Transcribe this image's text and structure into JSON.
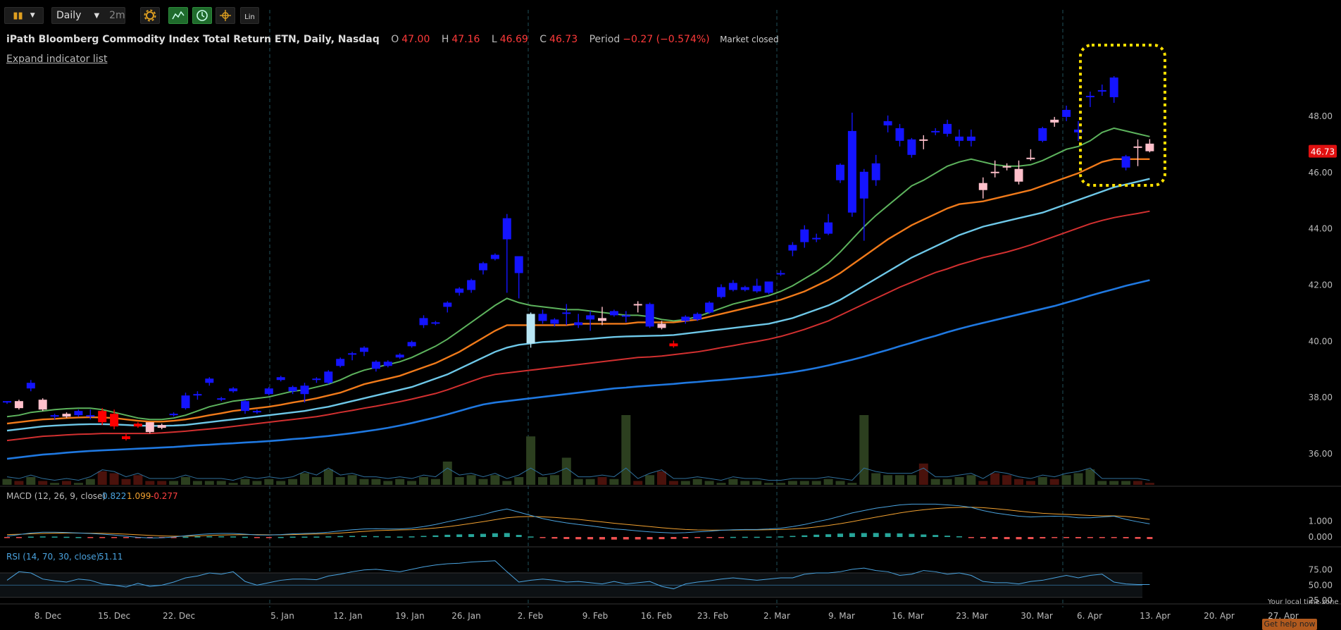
{
  "toolbar": {
    "chart_type_icon": "candlestick-icon",
    "period": "Daily",
    "period_alt": "2m",
    "settings_icon": "gear-icon",
    "scale_label": "Lin"
  },
  "header": {
    "title": "iPath Bloomberg Commodity Index Total Return ETN, Daily, Nasdaq",
    "o_label": "O",
    "o": "47.00",
    "h_label": "H",
    "h": "47.16",
    "l_label": "L",
    "l": "46.69",
    "c_label": "C",
    "c": "46.73",
    "period_label": "Period",
    "period_change": "−0.27 (−0.574%)",
    "status": "Market closed",
    "expand": "Expand indicator list"
  },
  "macd": {
    "label": "MACD (12, 26, 9, close)",
    "macd": "0.822",
    "signal": "1.099",
    "hist": "-0.277"
  },
  "rsi": {
    "label": "RSI (14, 70, 30, close)",
    "value": "51.11"
  },
  "footer": {
    "tz": "Your local time zone",
    "help": "Get help now"
  },
  "colors": {
    "up": "#1414ff",
    "down": "#ffc0cb",
    "gap": "#ff0000",
    "macd": "#4aa3df",
    "signal": "#f0a030",
    "rsi": "#4aa3df"
  },
  "chart_data": {
    "type": "candlestick",
    "price_axis": {
      "ticks": [
        36,
        38,
        40,
        42,
        44,
        46,
        48
      ],
      "ylim": [
        35,
        49.5
      ]
    },
    "last_price": "46.73",
    "x_labels": [
      "8. Dec",
      "15. Dec",
      "22. Dec",
      "5. Jan",
      "12. Jan",
      "19. Jan",
      "26. Jan",
      "2. Feb",
      "9. Feb",
      "16. Feb",
      "23. Feb",
      "2. Mar",
      "9. Mar",
      "16. Mar",
      "23. Mar",
      "30. Mar",
      "6. Apr",
      "13. Apr",
      "20. Apr",
      "27. Apr"
    ],
    "candles": [
      [
        37.8,
        37.85,
        37.75,
        37.85
      ],
      [
        37.85,
        37.9,
        37.55,
        37.6
      ],
      [
        38.3,
        38.6,
        38.2,
        38.5
      ],
      [
        37.9,
        37.95,
        37.5,
        37.55
      ],
      [
        37.3,
        37.4,
        37.2,
        37.35
      ],
      [
        37.4,
        37.45,
        37.25,
        37.3
      ],
      [
        37.35,
        37.55,
        37.3,
        37.5
      ],
      [
        37.3,
        37.55,
        37.2,
        37.35
      ],
      [
        37.5,
        37.6,
        37.0,
        37.1
      ],
      [
        37.4,
        37.55,
        36.85,
        36.95
      ],
      [
        36.6,
        36.7,
        36.45,
        36.5
      ],
      [
        37.05,
        37.1,
        36.9,
        36.95
      ],
      [
        37.1,
        37.1,
        36.7,
        36.75
      ],
      [
        37.0,
        37.05,
        36.85,
        36.9
      ],
      [
        37.35,
        37.45,
        37.3,
        37.4
      ],
      [
        37.6,
        38.15,
        37.55,
        38.05
      ],
      [
        38.05,
        38.2,
        37.9,
        38.1
      ],
      [
        38.5,
        38.7,
        38.4,
        38.65
      ],
      [
        37.95,
        38.0,
        37.85,
        37.95
      ],
      [
        38.2,
        38.35,
        38.15,
        38.3
      ],
      [
        37.5,
        37.9,
        37.4,
        37.85
      ],
      [
        37.5,
        37.55,
        37.4,
        37.5
      ],
      [
        38.1,
        38.35,
        38.05,
        38.3
      ],
      [
        38.6,
        38.75,
        38.55,
        38.7
      ],
      [
        38.2,
        38.4,
        38.1,
        38.35
      ],
      [
        38.1,
        38.5,
        37.8,
        38.4
      ],
      [
        38.6,
        38.7,
        38.5,
        38.65
      ],
      [
        38.5,
        38.95,
        38.45,
        38.9
      ],
      [
        39.1,
        39.4,
        39.05,
        39.35
      ],
      [
        39.5,
        39.6,
        39.3,
        39.55
      ],
      [
        39.6,
        39.8,
        39.45,
        39.75
      ],
      [
        39.0,
        39.3,
        38.9,
        39.25
      ],
      [
        39.1,
        39.3,
        39.05,
        39.25
      ],
      [
        39.4,
        39.55,
        39.35,
        39.5
      ],
      [
        39.8,
        40.0,
        39.75,
        39.95
      ],
      [
        40.55,
        40.9,
        40.45,
        40.8
      ],
      [
        40.6,
        40.7,
        40.55,
        40.65
      ],
      [
        41.2,
        41.4,
        41.0,
        41.35
      ],
      [
        41.7,
        41.9,
        41.6,
        41.85
      ],
      [
        41.8,
        42.2,
        41.7,
        42.15
      ],
      [
        42.5,
        42.8,
        42.35,
        42.75
      ],
      [
        42.9,
        43.1,
        42.85,
        43.05
      ],
      [
        43.6,
        44.5,
        41.7,
        44.35
      ],
      [
        42.4,
        42.9,
        41.5,
        43.0
      ],
      [
        39.9,
        41.0,
        39.75,
        40.95
      ],
      [
        40.7,
        41.1,
        40.6,
        40.95
      ],
      [
        40.6,
        40.8,
        40.5,
        40.75
      ],
      [
        40.95,
        41.3,
        40.55,
        41.0
      ],
      [
        40.55,
        40.95,
        40.45,
        40.65
      ],
      [
        40.75,
        41.05,
        40.35,
        40.9
      ],
      [
        40.8,
        41.2,
        40.55,
        40.7
      ],
      [
        40.9,
        41.1,
        40.85,
        41.05
      ],
      [
        40.85,
        41.05,
        40.65,
        40.9
      ],
      [
        41.3,
        41.4,
        41.0,
        41.25
      ],
      [
        40.5,
        41.35,
        40.45,
        41.3
      ],
      [
        40.6,
        40.7,
        40.4,
        40.45
      ],
      [
        39.9,
        40.0,
        39.75,
        39.8
      ],
      [
        40.7,
        40.9,
        40.6,
        40.85
      ],
      [
        40.75,
        41.0,
        40.7,
        40.95
      ],
      [
        41.0,
        41.4,
        40.95,
        41.35
      ],
      [
        41.55,
        42.0,
        41.5,
        41.9
      ],
      [
        41.8,
        42.15,
        41.75,
        42.05
      ],
      [
        41.8,
        41.95,
        41.75,
        41.9
      ],
      [
        41.75,
        42.2,
        41.7,
        41.95
      ],
      [
        41.7,
        42.1,
        41.65,
        42.1
      ],
      [
        42.4,
        42.5,
        42.3,
        42.4
      ],
      [
        43.2,
        43.5,
        43.0,
        43.4
      ],
      [
        43.5,
        44.1,
        43.3,
        43.95
      ],
      [
        43.6,
        43.8,
        43.5,
        43.65
      ],
      [
        43.8,
        44.5,
        43.75,
        44.2
      ],
      [
        45.7,
        46.3,
        45.6,
        46.25
      ],
      [
        44.55,
        48.1,
        44.4,
        47.45
      ],
      [
        45.05,
        46.1,
        43.55,
        46.0
      ],
      [
        45.7,
        46.6,
        45.5,
        46.3
      ],
      [
        47.65,
        48.0,
        47.4,
        47.8
      ],
      [
        47.1,
        47.7,
        46.9,
        47.55
      ],
      [
        46.6,
        47.2,
        46.5,
        47.15
      ],
      [
        47.15,
        47.3,
        46.8,
        47.1
      ],
      [
        47.4,
        47.55,
        47.3,
        47.45
      ],
      [
        47.35,
        47.85,
        47.25,
        47.7
      ],
      [
        47.1,
        47.5,
        46.9,
        47.25
      ],
      [
        47.1,
        47.5,
        46.9,
        47.25
      ],
      [
        45.6,
        45.8,
        45.05,
        45.35
      ],
      [
        46.0,
        46.4,
        45.8,
        45.95
      ],
      [
        46.2,
        46.3,
        46.05,
        46.15
      ],
      [
        46.1,
        46.4,
        45.55,
        45.65
      ],
      [
        46.5,
        46.8,
        46.4,
        46.45
      ],
      [
        47.1,
        47.6,
        47.05,
        47.55
      ],
      [
        47.85,
        47.95,
        47.6,
        47.75
      ],
      [
        47.95,
        48.35,
        47.8,
        48.2
      ],
      [
        47.4,
        47.8,
        47.1,
        47.5
      ],
      [
        48.7,
        48.85,
        48.3,
        48.7
      ],
      [
        48.85,
        49.1,
        48.7,
        48.9
      ],
      [
        48.65,
        49.4,
        48.45,
        49.35
      ],
      [
        46.15,
        46.6,
        46.05,
        46.55
      ],
      [
        46.9,
        47.15,
        46.2,
        46.85
      ],
      [
        47.0,
        47.16,
        46.69,
        46.73
      ]
    ],
    "ma_green": [
      37.3,
      37.35,
      37.45,
      37.5,
      37.55,
      37.58,
      37.6,
      37.6,
      37.55,
      37.45,
      37.35,
      37.25,
      37.2,
      37.2,
      37.25,
      37.35,
      37.5,
      37.65,
      37.75,
      37.85,
      37.9,
      37.95,
      38.0,
      38.1,
      38.2,
      38.25,
      38.35,
      38.45,
      38.6,
      38.8,
      38.95,
      39.05,
      39.15,
      39.25,
      39.4,
      39.6,
      39.8,
      40.05,
      40.35,
      40.65,
      40.95,
      41.25,
      41.5,
      41.35,
      41.25,
      41.2,
      41.15,
      41.1,
      41.1,
      41.05,
      41.0,
      40.95,
      40.9,
      40.9,
      40.85,
      40.75,
      40.7,
      40.75,
      40.85,
      41.0,
      41.15,
      41.3,
      41.4,
      41.5,
      41.6,
      41.75,
      41.95,
      42.2,
      42.45,
      42.75,
      43.15,
      43.6,
      44.05,
      44.45,
      44.8,
      45.15,
      45.5,
      45.7,
      45.95,
      46.2,
      46.35,
      46.45,
      46.35,
      46.25,
      46.2,
      46.2,
      46.25,
      46.4,
      46.6,
      46.8,
      46.9,
      47.1,
      47.4,
      47.55,
      47.45,
      47.35,
      47.25
    ],
    "ma_orange": [
      37.05,
      37.1,
      37.15,
      37.2,
      37.22,
      37.25,
      37.27,
      37.28,
      37.27,
      37.25,
      37.2,
      37.15,
      37.12,
      37.12,
      37.15,
      37.2,
      37.27,
      37.35,
      37.42,
      37.5,
      37.55,
      37.6,
      37.65,
      37.72,
      37.8,
      37.87,
      37.95,
      38.05,
      38.15,
      38.3,
      38.45,
      38.55,
      38.65,
      38.75,
      38.9,
      39.05,
      39.2,
      39.4,
      39.6,
      39.85,
      40.1,
      40.35,
      40.55,
      40.55,
      40.55,
      40.55,
      40.55,
      40.55,
      40.6,
      40.6,
      40.6,
      40.6,
      40.6,
      40.65,
      40.65,
      40.65,
      40.65,
      40.7,
      40.75,
      40.85,
      40.95,
      41.05,
      41.15,
      41.25,
      41.35,
      41.45,
      41.6,
      41.75,
      41.95,
      42.15,
      42.4,
      42.7,
      43.0,
      43.3,
      43.6,
      43.85,
      44.1,
      44.3,
      44.5,
      44.7,
      44.85,
      44.9,
      44.95,
      45.05,
      45.15,
      45.25,
      45.35,
      45.5,
      45.65,
      45.8,
      45.95,
      46.15,
      46.35,
      46.45,
      46.45,
      46.45,
      46.45
    ],
    "ma_lightblue": [
      36.8,
      36.85,
      36.9,
      36.95,
      36.98,
      37.0,
      37.02,
      37.03,
      37.03,
      37.02,
      37.0,
      36.98,
      36.97,
      36.97,
      36.98,
      37.0,
      37.05,
      37.1,
      37.15,
      37.2,
      37.25,
      37.3,
      37.35,
      37.4,
      37.45,
      37.5,
      37.58,
      37.65,
      37.75,
      37.85,
      37.95,
      38.05,
      38.15,
      38.25,
      38.35,
      38.5,
      38.65,
      38.8,
      39.0,
      39.2,
      39.4,
      39.6,
      39.75,
      39.85,
      39.9,
      39.95,
      39.97,
      40.0,
      40.03,
      40.06,
      40.1,
      40.13,
      40.15,
      40.16,
      40.17,
      40.18,
      40.2,
      40.25,
      40.3,
      40.35,
      40.4,
      40.45,
      40.5,
      40.55,
      40.6,
      40.7,
      40.8,
      40.95,
      41.1,
      41.25,
      41.45,
      41.7,
      41.95,
      42.2,
      42.45,
      42.7,
      42.95,
      43.15,
      43.35,
      43.55,
      43.75,
      43.9,
      44.05,
      44.15,
      44.25,
      44.35,
      44.45,
      44.55,
      44.7,
      44.85,
      45.0,
      45.15,
      45.3,
      45.45,
      45.55,
      45.65,
      45.75
    ],
    "ma_red": [
      36.45,
      36.5,
      36.55,
      36.6,
      36.62,
      36.65,
      36.67,
      36.68,
      36.7,
      36.7,
      36.7,
      36.7,
      36.7,
      36.72,
      36.75,
      36.78,
      36.82,
      36.86,
      36.9,
      36.95,
      37.0,
      37.05,
      37.1,
      37.15,
      37.2,
      37.25,
      37.3,
      37.37,
      37.45,
      37.52,
      37.6,
      37.67,
      37.75,
      37.83,
      37.92,
      38.02,
      38.12,
      38.25,
      38.4,
      38.55,
      38.7,
      38.8,
      38.85,
      38.9,
      38.95,
      39.0,
      39.05,
      39.1,
      39.15,
      39.2,
      39.25,
      39.3,
      39.35,
      39.4,
      39.42,
      39.45,
      39.5,
      39.55,
      39.6,
      39.67,
      39.75,
      39.82,
      39.9,
      39.97,
      40.05,
      40.15,
      40.27,
      40.4,
      40.55,
      40.7,
      40.9,
      41.1,
      41.3,
      41.5,
      41.7,
      41.9,
      42.07,
      42.25,
      42.42,
      42.55,
      42.7,
      42.82,
      42.95,
      43.05,
      43.15,
      43.27,
      43.4,
      43.55,
      43.7,
      43.85,
      44.0,
      44.15,
      44.27,
      44.37,
      44.45,
      44.52,
      44.6
    ],
    "ma_blue": [
      35.8,
      35.85,
      35.9,
      35.95,
      35.98,
      36.02,
      36.05,
      36.08,
      36.1,
      36.12,
      36.14,
      36.16,
      36.18,
      36.2,
      36.22,
      36.25,
      36.28,
      36.3,
      36.33,
      36.35,
      36.38,
      36.4,
      36.43,
      36.46,
      36.5,
      36.53,
      36.57,
      36.61,
      36.66,
      36.71,
      36.77,
      36.83,
      36.9,
      36.98,
      37.07,
      37.17,
      37.27,
      37.38,
      37.5,
      37.62,
      37.73,
      37.8,
      37.85,
      37.9,
      37.95,
      38.0,
      38.05,
      38.1,
      38.15,
      38.2,
      38.25,
      38.3,
      38.33,
      38.37,
      38.4,
      38.43,
      38.46,
      38.5,
      38.53,
      38.57,
      38.6,
      38.64,
      38.68,
      38.72,
      38.77,
      38.82,
      38.88,
      38.95,
      39.03,
      39.12,
      39.22,
      39.32,
      39.43,
      39.55,
      39.67,
      39.8,
      39.92,
      40.05,
      40.17,
      40.3,
      40.42,
      40.53,
      40.63,
      40.73,
      40.83,
      40.93,
      41.03,
      41.13,
      41.23,
      41.35,
      41.47,
      41.6,
      41.72,
      41.83,
      41.95,
      42.05,
      42.15
    ],
    "volume": [
      3,
      2,
      4,
      2,
      1,
      2,
      1,
      3,
      7,
      6,
      3,
      5,
      2,
      2,
      2,
      4,
      2,
      2,
      2,
      1,
      3,
      2,
      3,
      2,
      3,
      6,
      4,
      8,
      4,
      5,
      3,
      3,
      2,
      3,
      2,
      4,
      3,
      12,
      4,
      5,
      3,
      5,
      2,
      4,
      25,
      4,
      5,
      14,
      3,
      3,
      4,
      3,
      36,
      2,
      5,
      7,
      2,
      2,
      3,
      2,
      1,
      3,
      2,
      2,
      1,
      1,
      2,
      2,
      2,
      3,
      2,
      1,
      36,
      6,
      5,
      5,
      5,
      11,
      3,
      3,
      4,
      5,
      2,
      6,
      5,
      3,
      2,
      4,
      3,
      5,
      6,
      8,
      2,
      2,
      2,
      2,
      1
    ],
    "macd_line": [
      0.05,
      0.15,
      0.25,
      0.3,
      0.3,
      0.28,
      0.25,
      0.22,
      0.18,
      0.12,
      0.05,
      -0.02,
      -0.06,
      -0.05,
      0.0,
      0.08,
      0.15,
      0.2,
      0.22,
      0.22,
      0.18,
      0.13,
      0.12,
      0.15,
      0.2,
      0.22,
      0.25,
      0.3,
      0.38,
      0.45,
      0.5,
      0.52,
      0.5,
      0.5,
      0.55,
      0.65,
      0.78,
      0.95,
      1.1,
      1.25,
      1.4,
      1.6,
      1.75,
      1.55,
      1.35,
      1.15,
      1.0,
      0.88,
      0.78,
      0.7,
      0.6,
      0.5,
      0.45,
      0.38,
      0.32,
      0.28,
      0.25,
      0.27,
      0.32,
      0.36,
      0.42,
      0.45,
      0.47,
      0.47,
      0.5,
      0.55,
      0.65,
      0.78,
      0.95,
      1.1,
      1.3,
      1.5,
      1.65,
      1.8,
      1.9,
      2.0,
      2.05,
      2.05,
      2.05,
      2.0,
      1.95,
      1.85,
      1.65,
      1.5,
      1.4,
      1.3,
      1.25,
      1.28,
      1.3,
      1.28,
      1.2,
      1.2,
      1.25,
      1.3,
      1.1,
      0.95,
      0.82
    ],
    "signal_line": [
      0.15,
      0.17,
      0.2,
      0.22,
      0.24,
      0.25,
      0.25,
      0.24,
      0.23,
      0.21,
      0.18,
      0.14,
      0.1,
      0.07,
      0.05,
      0.05,
      0.07,
      0.1,
      0.12,
      0.14,
      0.15,
      0.15,
      0.14,
      0.14,
      0.15,
      0.17,
      0.19,
      0.21,
      0.25,
      0.3,
      0.35,
      0.4,
      0.42,
      0.44,
      0.46,
      0.5,
      0.56,
      0.64,
      0.74,
      0.85,
      0.96,
      1.08,
      1.2,
      1.26,
      1.28,
      1.26,
      1.22,
      1.16,
      1.1,
      1.02,
      0.94,
      0.86,
      0.79,
      0.72,
      0.65,
      0.58,
      0.52,
      0.47,
      0.44,
      0.43,
      0.43,
      0.43,
      0.44,
      0.44,
      0.45,
      0.47,
      0.5,
      0.55,
      0.63,
      0.72,
      0.83,
      0.96,
      1.1,
      1.24,
      1.37,
      1.5,
      1.61,
      1.7,
      1.77,
      1.82,
      1.85,
      1.86,
      1.83,
      1.77,
      1.7,
      1.62,
      1.54,
      1.48,
      1.44,
      1.41,
      1.38,
      1.34,
      1.32,
      1.32,
      1.28,
      1.2,
      1.1
    ],
    "rsi_line": [
      58,
      72,
      70,
      60,
      57,
      55,
      60,
      58,
      52,
      50,
      47,
      53,
      48,
      50,
      55,
      62,
      65,
      70,
      68,
      72,
      56,
      50,
      54,
      58,
      60,
      60,
      59,
      65,
      68,
      72,
      75,
      76,
      74,
      72,
      76,
      80,
      83,
      85,
      86,
      88,
      89,
      90,
      72,
      55,
      58,
      60,
      58,
      55,
      56,
      54,
      52,
      56,
      52,
      54,
      56,
      48,
      44,
      52,
      55,
      57,
      60,
      62,
      60,
      58,
      60,
      62,
      62,
      68,
      70,
      70,
      72,
      76,
      78,
      74,
      72,
      66,
      68,
      74,
      72,
      68,
      70,
      66,
      56,
      54,
      54,
      52,
      56,
      58,
      62,
      66,
      62,
      66,
      68,
      55,
      52,
      51,
      51
    ]
  }
}
